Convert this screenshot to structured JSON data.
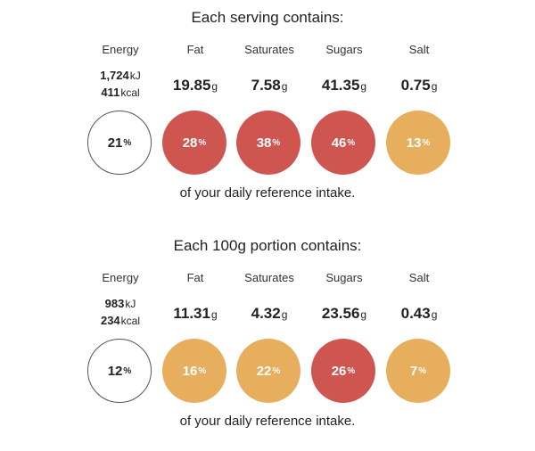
{
  "sections": [
    {
      "heading": "Each serving contains:",
      "energy": {
        "label": "Energy",
        "kj_value": "1,724",
        "kj_unit": "kJ",
        "kcal_value": "411",
        "kcal_unit": "kcal",
        "percent": "21",
        "pct_unit": "%",
        "level": "white"
      },
      "nutrients": [
        {
          "label": "Fat",
          "value": "19.85",
          "unit": "g",
          "percent": "28",
          "pct_unit": "%",
          "level": "red"
        },
        {
          "label": "Saturates",
          "value": "7.58",
          "unit": "g",
          "percent": "38",
          "pct_unit": "%",
          "level": "red"
        },
        {
          "label": "Sugars",
          "value": "41.35",
          "unit": "g",
          "percent": "46",
          "pct_unit": "%",
          "level": "red"
        },
        {
          "label": "Salt",
          "value": "0.75",
          "unit": "g",
          "percent": "13",
          "pct_unit": "%",
          "level": "amber"
        }
      ],
      "footer": "of your daily reference intake."
    },
    {
      "heading": "Each 100g portion contains:",
      "energy": {
        "label": "Energy",
        "kj_value": "983",
        "kj_unit": "kJ",
        "kcal_value": "234",
        "kcal_unit": "kcal",
        "percent": "12",
        "pct_unit": "%",
        "level": "white"
      },
      "nutrients": [
        {
          "label": "Fat",
          "value": "11.31",
          "unit": "g",
          "percent": "16",
          "pct_unit": "%",
          "level": "amber"
        },
        {
          "label": "Saturates",
          "value": "4.32",
          "unit": "g",
          "percent": "22",
          "pct_unit": "%",
          "level": "amber"
        },
        {
          "label": "Sugars",
          "value": "23.56",
          "unit": "g",
          "percent": "26",
          "pct_unit": "%",
          "level": "red"
        },
        {
          "label": "Salt",
          "value": "0.43",
          "unit": "g",
          "percent": "7",
          "pct_unit": "%",
          "level": "amber"
        }
      ],
      "footer": "of your daily reference intake."
    }
  ],
  "colors": {
    "red": "#cf5550",
    "amber": "#e6ae5d",
    "white": "#ffffff"
  }
}
